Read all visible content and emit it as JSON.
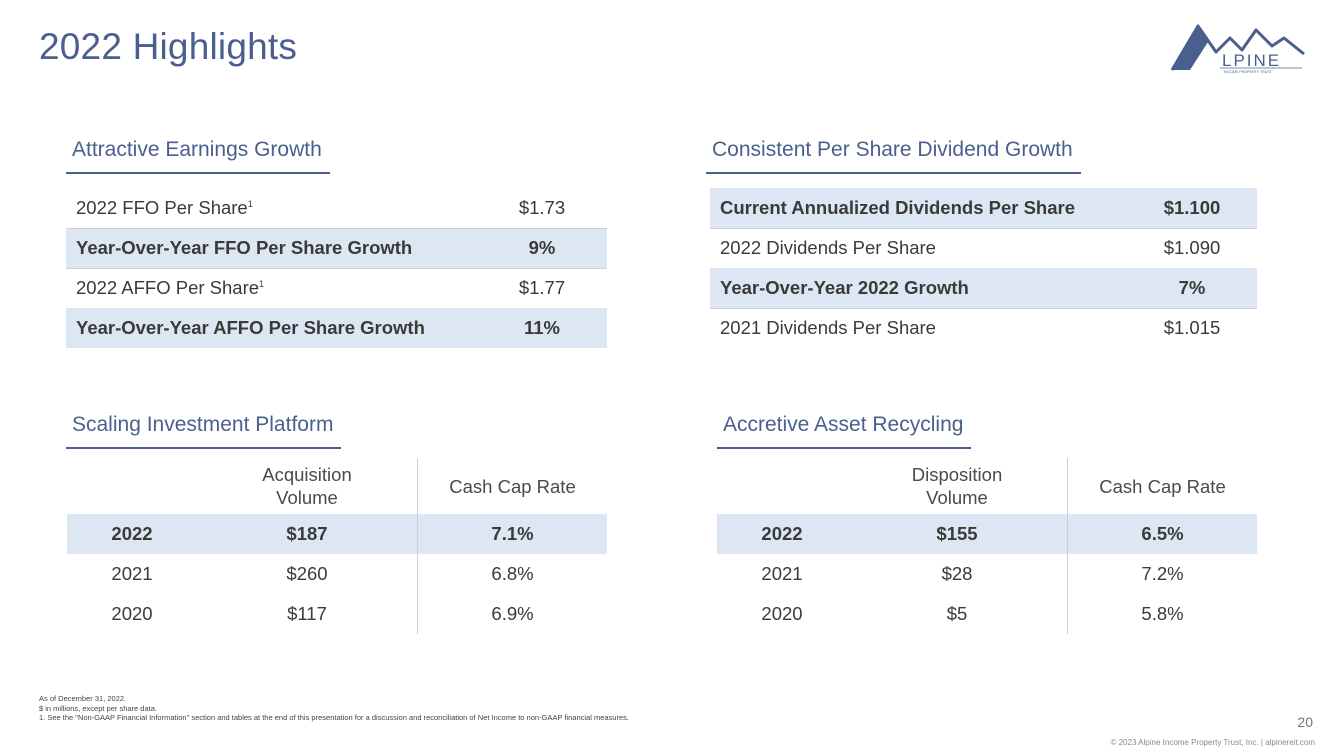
{
  "title": "2022 Highlights",
  "logo": {
    "text": "LPINE",
    "tagline": "INCOME PROPERTY TRUST"
  },
  "earnings": {
    "heading": "Attractive Earnings Growth",
    "rows": [
      {
        "label": "2022 FFO Per Share",
        "sup": "1",
        "value": "$1.73"
      },
      {
        "label": "Year-Over-Year FFO Per Share Growth",
        "sup": "",
        "value": "9%"
      },
      {
        "label": "2022 AFFO Per Share",
        "sup": "1",
        "value": "$1.77"
      },
      {
        "label": "Year-Over-Year AFFO Per Share Growth",
        "sup": "",
        "value": "11%"
      }
    ]
  },
  "dividend": {
    "heading": "Consistent Per Share Dividend Growth",
    "rows": [
      {
        "label": "Current Annualized Dividends Per Share",
        "value": "$1.100"
      },
      {
        "label": "2022 Dividends Per Share",
        "value": "$1.090"
      },
      {
        "label": "Year-Over-Year 2022 Growth",
        "value": "7%"
      },
      {
        "label": "2021 Dividends Per Share",
        "value": "$1.015"
      }
    ]
  },
  "investment": {
    "heading": "Scaling Investment Platform",
    "col2": [
      "Acquisition",
      "Volume"
    ],
    "col3": "Cash Cap Rate",
    "rows": [
      {
        "year": "2022",
        "volume": "$187",
        "rate": "7.1%"
      },
      {
        "year": "2021",
        "volume": "$260",
        "rate": "6.8%"
      },
      {
        "year": "2020",
        "volume": "$117",
        "rate": "6.9%"
      }
    ]
  },
  "recycling": {
    "heading": "Accretive Asset Recycling",
    "col2": [
      "Disposition",
      "Volume"
    ],
    "col3": "Cash Cap Rate",
    "rows": [
      {
        "year": "2022",
        "volume": "$155",
        "rate": "6.5%"
      },
      {
        "year": "2021",
        "volume": "$28",
        "rate": "7.2%"
      },
      {
        "year": "2020",
        "volume": "$5",
        "rate": "5.8%"
      }
    ]
  },
  "footnotes": [
    "As of December 31, 2022.",
    "$ in millions, except per share data.",
    "1.    See the \"Non-GAAP Financial Information\" section and tables at the end of this presentation for a discussion and reconciliation of Net Income to non-GAAP financial measures."
  ],
  "page_number": "20",
  "copyright": "© 2023 Alpine Income Property Trust, Inc.  |  alpinereit.com",
  "colors": {
    "accent": "#4a5f8e",
    "highlight": "#dde7f3"
  }
}
